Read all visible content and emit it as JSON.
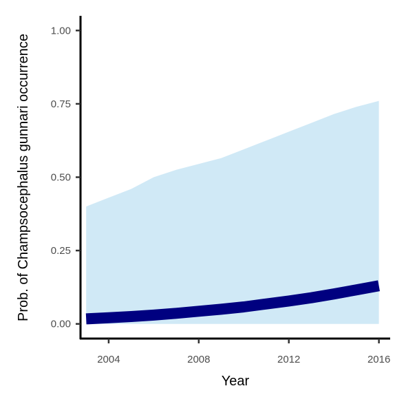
{
  "chart_data": {
    "type": "area",
    "xlabel": "Year",
    "ylabel": "Prob. of  Champsocephalus gunnari  occurrence",
    "xlim": [
      2002.75,
      2016.5
    ],
    "ylim": [
      -0.05,
      1.05
    ],
    "x_ticks": [
      2004,
      2008,
      2012,
      2016
    ],
    "x_tick_labels": [
      "2004",
      "2008",
      "2012",
      "2016"
    ],
    "y_ticks": [
      0,
      0.25,
      0.5,
      0.75,
      1
    ],
    "y_tick_labels": [
      "0.00",
      "0.25",
      "0.50",
      "0.75",
      "1.00"
    ],
    "grid": false,
    "series": [
      {
        "x": [
          2003,
          2004,
          2005,
          2006,
          2007,
          2008,
          2009,
          2010,
          2011,
          2012,
          2013,
          2014,
          2015,
          2016
        ],
        "mean": [
          0.017,
          0.021,
          0.025,
          0.03,
          0.036,
          0.043,
          0.05,
          0.058,
          0.068,
          0.078,
          0.089,
          0.102,
          0.116,
          0.13
        ],
        "lower": [
          0.0,
          0.0,
          0.0,
          0.0,
          0.0,
          0.0,
          0.0,
          0.0,
          0.0,
          0.0,
          0.0,
          0.0,
          0.0,
          0.0
        ],
        "upper": [
          0.4,
          0.43,
          0.46,
          0.5,
          0.525,
          0.545,
          0.565,
          0.595,
          0.625,
          0.655,
          0.685,
          0.715,
          0.74,
          0.76
        ]
      }
    ],
    "colors": {
      "ribbon": "#d0e9f6",
      "line": "#000080",
      "axis": "#000000",
      "tick_text": "#4d4d4d"
    }
  }
}
